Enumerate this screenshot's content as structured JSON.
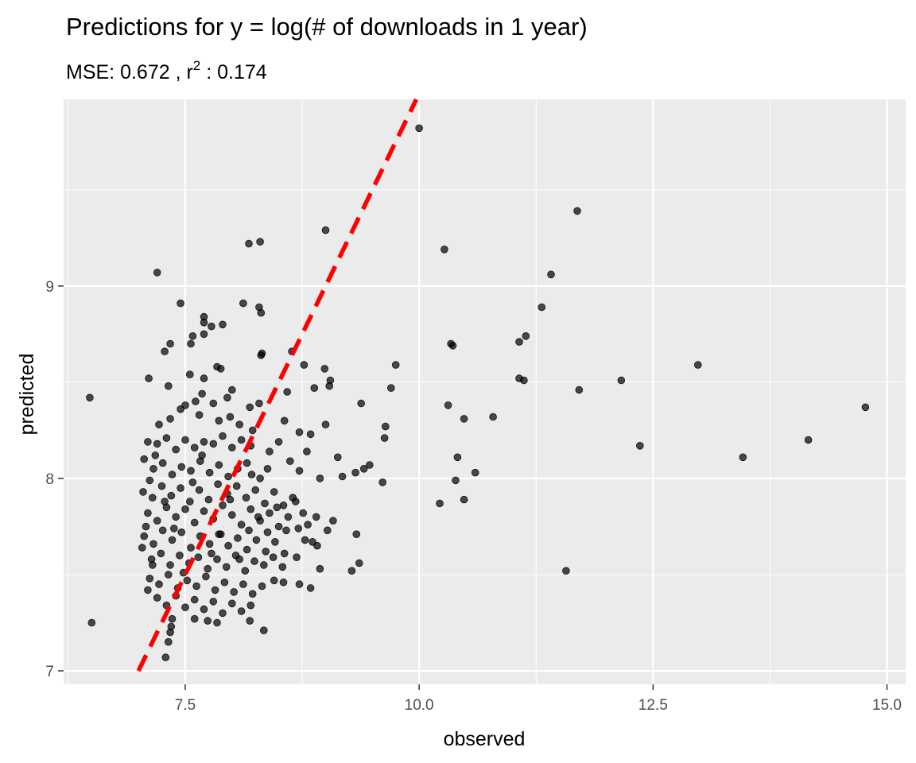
{
  "chart_data": {
    "type": "scatter",
    "title": "Predictions for y = log(# of downloads in 1 year)",
    "subtitle": {
      "prefix": "MSE:  0.672 , r",
      "superscript": "2",
      "suffix": " :  0.174"
    },
    "xlabel": "observed",
    "ylabel": "predicted",
    "xlim": [
      6.2,
      15.2
    ],
    "ylim": [
      6.93,
      9.97
    ],
    "x_ticks": [
      7.5,
      10.0,
      12.5,
      15.0
    ],
    "x_tick_labels": [
      "7.5",
      "10.0",
      "12.5",
      "15.0"
    ],
    "y_ticks": [
      7,
      8,
      9
    ],
    "y_tick_labels": [
      "7",
      "8",
      "9"
    ],
    "grid": true,
    "background_color": "#ebebeb",
    "grid_color": "#ffffff",
    "point_color": "#000000",
    "point_opacity": 0.7,
    "reference_line": {
      "style": "dashed",
      "color": "#ff0000",
      "slope": 1,
      "intercept": 0,
      "from_x": 7.0,
      "to_x": 9.97
    },
    "points": [
      [
        6.48,
        8.42
      ],
      [
        6.5,
        7.25
      ],
      [
        10.0,
        9.82
      ],
      [
        11.69,
        9.39
      ],
      [
        9.0,
        9.29
      ],
      [
        8.3,
        9.23
      ],
      [
        8.18,
        9.22
      ],
      [
        10.27,
        9.19
      ],
      [
        11.41,
        9.06
      ],
      [
        7.2,
        9.07
      ],
      [
        11.31,
        8.89
      ],
      [
        7.45,
        8.91
      ],
      [
        8.12,
        8.91
      ],
      [
        8.29,
        8.89
      ],
      [
        8.31,
        8.86
      ],
      [
        7.7,
        8.84
      ],
      [
        7.7,
        8.81
      ],
      [
        7.78,
        8.79
      ],
      [
        7.9,
        8.8
      ],
      [
        11.14,
        8.74
      ],
      [
        11.07,
        8.71
      ],
      [
        10.34,
        8.7
      ],
      [
        10.36,
        8.69
      ],
      [
        7.58,
        8.74
      ],
      [
        7.56,
        8.7
      ],
      [
        7.7,
        8.75
      ],
      [
        7.34,
        8.7
      ],
      [
        7.28,
        8.66
      ],
      [
        8.32,
        8.65
      ],
      [
        8.31,
        8.64
      ],
      [
        8.64,
        8.66
      ],
      [
        8.77,
        8.59
      ],
      [
        8.99,
        8.57
      ],
      [
        9.75,
        8.59
      ],
      [
        12.98,
        8.59
      ],
      [
        7.84,
        8.58
      ],
      [
        7.88,
        8.57
      ],
      [
        7.11,
        8.52
      ],
      [
        7.55,
        8.54
      ],
      [
        7.7,
        8.52
      ],
      [
        11.07,
        8.52
      ],
      [
        11.12,
        8.51
      ],
      [
        12.16,
        8.51
      ],
      [
        9.05,
        8.51
      ],
      [
        9.04,
        8.48
      ],
      [
        9.7,
        8.47
      ],
      [
        11.71,
        8.46
      ],
      [
        7.32,
        8.48
      ],
      [
        7.68,
        8.44
      ],
      [
        8.0,
        8.46
      ],
      [
        8.59,
        8.45
      ],
      [
        8.88,
        8.47
      ],
      [
        9.38,
        8.39
      ],
      [
        8.29,
        8.39
      ],
      [
        8.19,
        8.37
      ],
      [
        7.61,
        8.4
      ],
      [
        7.45,
        8.36
      ],
      [
        7.5,
        8.38
      ],
      [
        7.8,
        8.39
      ],
      [
        7.95,
        8.42
      ],
      [
        10.31,
        8.38
      ],
      [
        10.48,
        8.31
      ],
      [
        10.79,
        8.32
      ],
      [
        14.77,
        8.37
      ],
      [
        7.34,
        8.31
      ],
      [
        7.22,
        8.28
      ],
      [
        7.65,
        8.33
      ],
      [
        7.86,
        8.3
      ],
      [
        7.98,
        8.32
      ],
      [
        8.08,
        8.28
      ],
      [
        8.22,
        8.25
      ],
      [
        8.56,
        8.3
      ],
      [
        9.64,
        8.27
      ],
      [
        8.72,
        8.24
      ],
      [
        8.84,
        8.23
      ],
      [
        9.0,
        8.28
      ],
      [
        9.63,
        8.21
      ],
      [
        12.36,
        8.17
      ],
      [
        14.16,
        8.2
      ],
      [
        7.1,
        8.19
      ],
      [
        7.2,
        8.18
      ],
      [
        7.3,
        8.21
      ],
      [
        7.4,
        8.15
      ],
      [
        7.5,
        8.2
      ],
      [
        7.6,
        8.16
      ],
      [
        7.7,
        8.19
      ],
      [
        7.8,
        8.18
      ],
      [
        7.9,
        8.22
      ],
      [
        8.0,
        8.16
      ],
      [
        8.1,
        8.2
      ],
      [
        8.2,
        8.17
      ],
      [
        8.4,
        8.14
      ],
      [
        8.5,
        8.19
      ],
      [
        8.8,
        8.14
      ],
      [
        9.13,
        8.11
      ],
      [
        10.41,
        8.11
      ],
      [
        13.46,
        8.11
      ],
      [
        9.47,
        8.07
      ],
      [
        9.41,
        8.05
      ],
      [
        9.32,
        8.03
      ],
      [
        9.18,
        8.01
      ],
      [
        8.94,
        8.0
      ],
      [
        8.72,
        8.04
      ],
      [
        8.62,
        8.09
      ],
      [
        8.38,
        8.05
      ],
      [
        8.21,
        8.02
      ],
      [
        10.6,
        8.03
      ],
      [
        10.39,
        7.99
      ],
      [
        9.61,
        7.98
      ],
      [
        7.06,
        8.1
      ],
      [
        7.16,
        8.05
      ],
      [
        7.26,
        8.08
      ],
      [
        7.36,
        8.02
      ],
      [
        7.46,
        8.06
      ],
      [
        7.56,
        8.04
      ],
      [
        7.66,
        8.09
      ],
      [
        7.76,
        8.03
      ],
      [
        7.86,
        8.07
      ],
      [
        7.96,
        8.01
      ],
      [
        8.06,
        8.05
      ],
      [
        8.16,
        8.08
      ],
      [
        8.3,
        8.0
      ],
      [
        10.22,
        7.87
      ],
      [
        10.48,
        7.89
      ],
      [
        7.05,
        7.93
      ],
      [
        7.15,
        7.9
      ],
      [
        7.25,
        7.96
      ],
      [
        7.35,
        7.91
      ],
      [
        7.45,
        7.95
      ],
      [
        7.55,
        7.88
      ],
      [
        7.65,
        7.94
      ],
      [
        7.75,
        7.89
      ],
      [
        7.85,
        7.97
      ],
      [
        7.95,
        7.92
      ],
      [
        8.05,
        7.96
      ],
      [
        8.15,
        7.9
      ],
      [
        8.25,
        7.94
      ],
      [
        8.35,
        7.87
      ],
      [
        8.45,
        7.93
      ],
      [
        8.55,
        7.86
      ],
      [
        8.65,
        7.9
      ],
      [
        8.76,
        7.82
      ],
      [
        8.9,
        7.8
      ],
      [
        9.08,
        7.78
      ],
      [
        7.1,
        7.82
      ],
      [
        7.2,
        7.78
      ],
      [
        7.3,
        7.85
      ],
      [
        7.4,
        7.8
      ],
      [
        7.5,
        7.84
      ],
      [
        7.6,
        7.77
      ],
      [
        7.7,
        7.83
      ],
      [
        7.8,
        7.79
      ],
      [
        7.9,
        7.86
      ],
      [
        8.0,
        7.81
      ],
      [
        8.1,
        7.76
      ],
      [
        8.2,
        7.84
      ],
      [
        8.3,
        7.78
      ],
      [
        8.4,
        7.82
      ],
      [
        8.5,
        7.75
      ],
      [
        8.6,
        7.8
      ],
      [
        8.71,
        7.74
      ],
      [
        8.81,
        7.76
      ],
      [
        9.02,
        7.73
      ],
      [
        9.33,
        7.71
      ],
      [
        7.06,
        7.7
      ],
      [
        7.16,
        7.66
      ],
      [
        7.26,
        7.73
      ],
      [
        7.36,
        7.68
      ],
      [
        7.46,
        7.72
      ],
      [
        7.56,
        7.64
      ],
      [
        7.66,
        7.7
      ],
      [
        7.76,
        7.66
      ],
      [
        7.86,
        7.71
      ],
      [
        7.96,
        7.65
      ],
      [
        8.06,
        7.69
      ],
      [
        8.16,
        7.63
      ],
      [
        8.26,
        7.68
      ],
      [
        8.36,
        7.62
      ],
      [
        8.46,
        7.67
      ],
      [
        8.56,
        7.61
      ],
      [
        8.86,
        7.67
      ],
      [
        8.91,
        7.65
      ],
      [
        7.04,
        7.64
      ],
      [
        7.14,
        7.58
      ],
      [
        7.24,
        7.61
      ],
      [
        7.34,
        7.55
      ],
      [
        7.44,
        7.6
      ],
      [
        7.54,
        7.56
      ],
      [
        7.64,
        7.59
      ],
      [
        7.74,
        7.53
      ],
      [
        7.84,
        7.58
      ],
      [
        7.94,
        7.54
      ],
      [
        8.04,
        7.6
      ],
      [
        8.14,
        7.52
      ],
      [
        8.24,
        7.57
      ],
      [
        8.34,
        7.55
      ],
      [
        8.44,
        7.59
      ],
      [
        8.54,
        7.54
      ],
      [
        8.69,
        7.59
      ],
      [
        9.36,
        7.56
      ],
      [
        9.28,
        7.52
      ],
      [
        8.94,
        7.53
      ],
      [
        11.57,
        7.52
      ],
      [
        7.12,
        7.48
      ],
      [
        7.22,
        7.45
      ],
      [
        7.32,
        7.5
      ],
      [
        7.42,
        7.43
      ],
      [
        7.52,
        7.47
      ],
      [
        7.62,
        7.44
      ],
      [
        7.72,
        7.49
      ],
      [
        7.82,
        7.42
      ],
      [
        7.92,
        7.46
      ],
      [
        8.02,
        7.41
      ],
      [
        8.12,
        7.45
      ],
      [
        8.22,
        7.4
      ],
      [
        8.32,
        7.44
      ],
      [
        8.45,
        7.47
      ],
      [
        8.55,
        7.46
      ],
      [
        8.72,
        7.45
      ],
      [
        8.84,
        7.43
      ],
      [
        7.2,
        7.38
      ],
      [
        7.3,
        7.34
      ],
      [
        7.4,
        7.39
      ],
      [
        7.5,
        7.33
      ],
      [
        7.6,
        7.37
      ],
      [
        7.7,
        7.32
      ],
      [
        7.8,
        7.36
      ],
      [
        7.9,
        7.3
      ],
      [
        8.0,
        7.35
      ],
      [
        8.1,
        7.31
      ],
      [
        8.2,
        7.34
      ],
      [
        7.36,
        7.27
      ],
      [
        7.35,
        7.23
      ],
      [
        7.34,
        7.2
      ],
      [
        7.6,
        7.27
      ],
      [
        7.74,
        7.26
      ],
      [
        7.84,
        7.25
      ],
      [
        8.19,
        7.26
      ],
      [
        8.34,
        7.21
      ],
      [
        7.32,
        7.15
      ],
      [
        7.29,
        7.07
      ],
      [
        7.1,
        7.42
      ],
      [
        7.15,
        7.55
      ],
      [
        7.08,
        7.75
      ],
      [
        7.12,
        7.99
      ],
      [
        7.18,
        8.12
      ],
      [
        7.28,
        7.88
      ],
      [
        7.38,
        7.74
      ],
      [
        7.48,
        7.51
      ],
      [
        7.58,
        7.98
      ],
      [
        7.68,
        8.12
      ],
      [
        7.78,
        7.61
      ],
      [
        7.88,
        7.71
      ],
      [
        7.98,
        7.89
      ],
      [
        8.08,
        7.58
      ],
      [
        8.18,
        7.73
      ],
      [
        8.28,
        7.8
      ],
      [
        8.38,
        7.72
      ],
      [
        8.48,
        7.85
      ],
      [
        8.58,
        7.73
      ],
      [
        8.68,
        7.88
      ],
      [
        8.78,
        7.68
      ]
    ]
  }
}
